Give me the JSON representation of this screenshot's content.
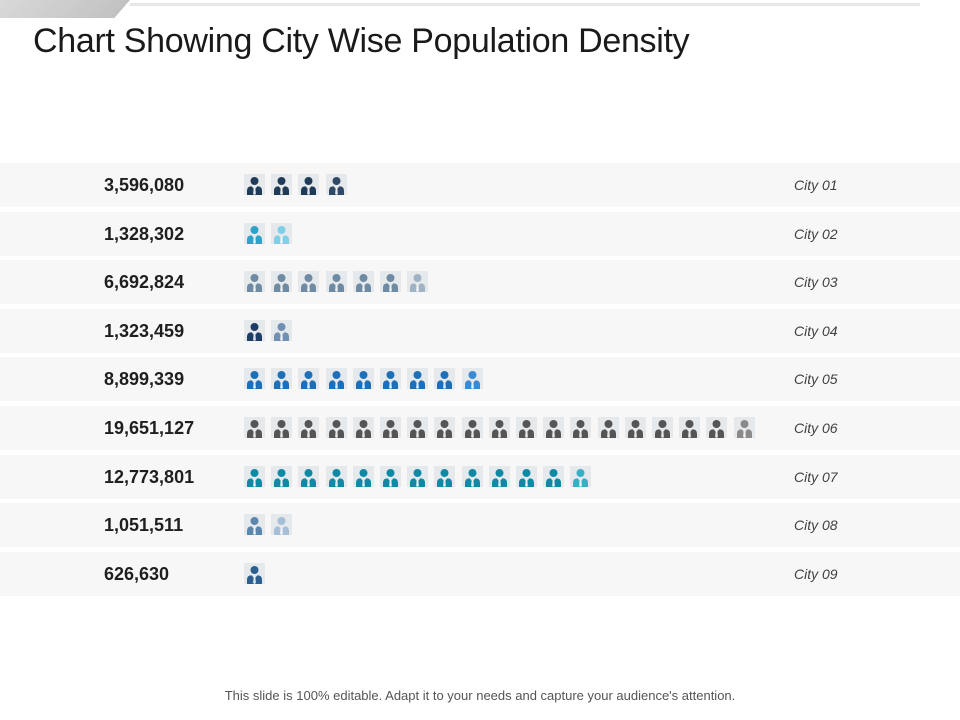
{
  "title": "Chart Showing City Wise Population Density",
  "footer": "This slide is 100% editable. Adapt it to your needs and capture your audience's attention.",
  "chart_data": {
    "type": "table",
    "title": "Chart Showing City Wise Population Density",
    "categories": [
      "City 01",
      "City 02",
      "City 03",
      "City 04",
      "City 05",
      "City 06",
      "City 07",
      "City 08",
      "City 09"
    ],
    "values": [
      3596080,
      1328302,
      6692824,
      1323459,
      8899339,
      19651127,
      12773801,
      1051511,
      626630
    ],
    "value_labels": [
      "3,596,080",
      "1,328,302",
      "6,692,824",
      "1,323,459",
      "8,899,339",
      "19,651,127",
      "12,773,801",
      "1,051,511",
      "626,630"
    ],
    "icon_counts": [
      4,
      2,
      7,
      2,
      9,
      19,
      13,
      2,
      1
    ],
    "rows": [
      {
        "city": "City 01",
        "value": "3,596,080",
        "icons": 4,
        "colors": [
          "#1f3b57",
          "#2e4a66"
        ]
      },
      {
        "city": "City 02",
        "value": "1,328,302",
        "icons": 2,
        "colors": [
          "#2fa3c7",
          "#7fd0e6"
        ]
      },
      {
        "city": "City 03",
        "value": "6,692,824",
        "icons": 7,
        "colors": [
          "#6f8ba3",
          "#9fb3c4"
        ]
      },
      {
        "city": "City 04",
        "value": "1,323,459",
        "icons": 2,
        "colors": [
          "#1e3d66",
          "#6f8fb5"
        ]
      },
      {
        "city": "City 05",
        "value": "8,899,339",
        "icons": 9,
        "colors": [
          "#1f6fb8",
          "#3a8ad1"
        ]
      },
      {
        "city": "City 06",
        "value": "19,651,127",
        "icons": 19,
        "colors": [
          "#555555",
          "#8a8a8a"
        ]
      },
      {
        "city": "City 07",
        "value": "12,773,801",
        "icons": 13,
        "colors": [
          "#0f8aa6",
          "#36b0c7"
        ]
      },
      {
        "city": "City 08",
        "value": "1,051,511",
        "icons": 2,
        "colors": [
          "#5d86ad",
          "#a5bfd6"
        ]
      },
      {
        "city": "City 09",
        "value": "626,630",
        "icons": 1,
        "colors": [
          "#2c5e8f",
          "#2c5e8f"
        ]
      }
    ]
  }
}
